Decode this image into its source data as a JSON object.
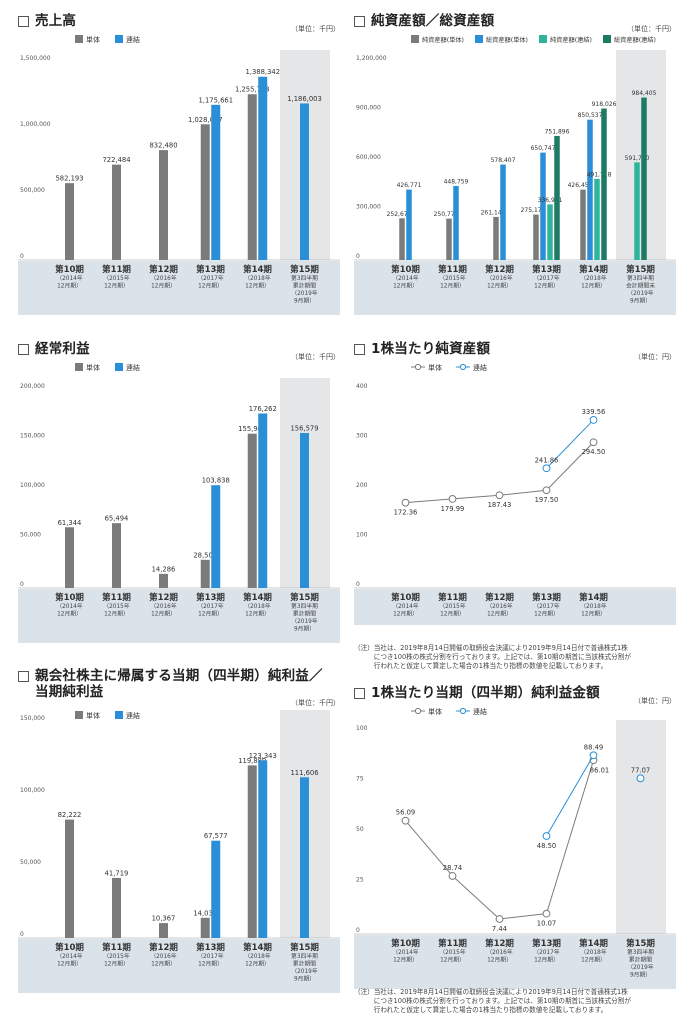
{
  "colors": {
    "single": "#7b7b7b",
    "consolidated": "#2a8fd6",
    "consol_net": "#2fb59a",
    "consol_total": "#1d7a64",
    "band": "#dbe3ea",
    "shade": "#e4e6e8"
  },
  "x_labels": [
    {
      "period": "第10期",
      "sub": [
        "（2014年",
        "12月期）"
      ]
    },
    {
      "period": "第11期",
      "sub": [
        "（2015年",
        "12月期）"
      ]
    },
    {
      "period": "第12期",
      "sub": [
        "（2016年",
        "12月期）"
      ]
    },
    {
      "period": "第13期",
      "sub": [
        "（2017年",
        "12月期）"
      ]
    },
    {
      "period": "第14期",
      "sub": [
        "（2018年",
        "12月期）"
      ]
    },
    {
      "period": "第15期",
      "sub": [
        "第3四半期",
        "累計期間",
        "（2019年",
        "9月期）"
      ]
    }
  ],
  "x_labels_assets_last": {
    "period": "第15期",
    "sub": [
      "第3四半期",
      "会計期間末",
      "（2019年",
      "9月期）"
    ]
  },
  "charts": {
    "sales": {
      "title": "売上高",
      "unit": "（単位：千円）",
      "chart_data": {
        "type": "bar",
        "title": "売上高",
        "categories": [
          "第10期",
          "第11期",
          "第12期",
          "第13期",
          "第14期",
          "第15期"
        ],
        "ylim": [
          0,
          1500000
        ],
        "yticks": [
          "0",
          "500,000",
          "1,000,000",
          "1,500,000"
        ],
        "ytick_values": [
          0,
          500000,
          1000000,
          1500000
        ],
        "series": [
          {
            "name": "単体",
            "key": "single",
            "values": [
              582193,
              722484,
              832480,
              1028037,
              1255773,
              null
            ],
            "labels": [
              "582,193",
              "722,484",
              "832,480",
              "1,028,037",
              "1,255,773",
              ""
            ]
          },
          {
            "name": "連結",
            "key": "consolidated",
            "values": [
              null,
              null,
              null,
              1175661,
              1388342,
              1186003
            ],
            "labels": [
              "",
              "",
              "",
              "1,175,661",
              "1,388,342",
              "1,186,003"
            ]
          }
        ]
      }
    },
    "assets": {
      "title": "純資産額／総資産額",
      "unit": "（単位：千円）",
      "chart_data": {
        "type": "bar",
        "title": "純資産額／総資産額",
        "categories": [
          "第10期",
          "第11期",
          "第12期",
          "第13期",
          "第14期",
          "第15期"
        ],
        "ylim": [
          0,
          1200000
        ],
        "yticks": [
          "0",
          "300,000",
          "600,000",
          "900,000",
          "1,200,000"
        ],
        "ytick_values": [
          0,
          300000,
          600000,
          900000,
          1200000
        ],
        "series": [
          {
            "name": "純資産額(単体)",
            "key": "single",
            "values": [
              252678,
              250777,
              261145,
              275176,
              426459,
              null
            ],
            "labels": [
              "252,678",
              "250,777",
              "261,145",
              "275,176",
              "426,459",
              ""
            ]
          },
          {
            "name": "総資産額(単体)",
            "key": "consolidated",
            "values": [
              426771,
              448759,
              578407,
              650747,
              850537,
              null
            ],
            "labels": [
              "426,771",
              "448,759",
              "578,407",
              "650,747",
              "850,537",
              ""
            ]
          },
          {
            "name": "純資産額(連結)",
            "key": "consol_net",
            "values": [
              null,
              null,
              null,
              336981,
              491718,
              591740
            ],
            "labels": [
              "",
              "",
              "",
              "336,981",
              "491,718",
              "591,740"
            ]
          },
          {
            "name": "総資産額(連結)",
            "key": "consol_total",
            "values": [
              null,
              null,
              null,
              751896,
              918026,
              984405
            ],
            "labels": [
              "",
              "",
              "",
              "751,896",
              "918,026",
              "984,405"
            ]
          }
        ]
      }
    },
    "ordinary": {
      "title": "経常利益",
      "unit": "（単位：千円）",
      "chart_data": {
        "type": "bar",
        "title": "経常利益",
        "categories": [
          "第10期",
          "第11期",
          "第12期",
          "第13期",
          "第14期",
          "第15期"
        ],
        "ylim": [
          0,
          200000
        ],
        "yticks": [
          "0",
          "50,000",
          "100,000",
          "150,000",
          "200,000"
        ],
        "ytick_values": [
          0,
          50000,
          100000,
          150000,
          200000
        ],
        "series": [
          {
            "name": "単体",
            "key": "single",
            "values": [
              61344,
              65494,
              14286,
              28501,
              155900,
              null
            ],
            "labels": [
              "61,344",
              "65,494",
              "14,286",
              "28,501",
              "155,900",
              ""
            ]
          },
          {
            "name": "連結",
            "key": "consolidated",
            "values": [
              null,
              null,
              null,
              103838,
              176262,
              156579
            ],
            "labels": [
              "",
              "",
              "",
              "103,838",
              "176,262",
              "156,579"
            ]
          }
        ]
      }
    },
    "bps": {
      "title": "1株当たり純資産額",
      "unit": "（単位：円）",
      "chart_data": {
        "type": "line",
        "title": "1株当たり純資産額",
        "categories": [
          "第10期",
          "第11期",
          "第12期",
          "第13期",
          "第14期"
        ],
        "ylim": [
          0,
          400
        ],
        "yticks": [
          "0",
          "100",
          "200",
          "300",
          "400"
        ],
        "ytick_values": [
          0,
          100,
          200,
          300,
          400
        ],
        "series": [
          {
            "name": "単体",
            "key": "single",
            "values": [
              172.36,
              179.99,
              187.43,
              197.5,
              294.5
            ],
            "labels": [
              "172.36",
              "179.99",
              "187.43",
              "197.50",
              "294.50"
            ]
          },
          {
            "name": "連結",
            "key": "consolidated",
            "values": [
              null,
              null,
              null,
              241.86,
              339.56
            ],
            "labels": [
              "",
              "",
              "",
              "241.86",
              "339.56"
            ]
          }
        ]
      },
      "note": [
        "（注）当社は、2019年8月14日開催の取締役会決議により2019年9月14日付で普通株式1株",
        "　　　につき100株の株式分割を行っております。上記では、第10期の期首に当該株式分割が",
        "　　　行われたと仮定して算定した場合の1株当たり指標の数値を記載しております。"
      ]
    },
    "net_income": {
      "title": "親会社株主に帰属する当期（四半期）純利益／",
      "title2": "当期純利益",
      "unit": "（単位：千円）",
      "chart_data": {
        "type": "bar",
        "title": "親会社株主に帰属する当期（四半期）純利益／当期純利益",
        "categories": [
          "第10期",
          "第11期",
          "第12期",
          "第13期",
          "第14期",
          "第15期"
        ],
        "ylim": [
          0,
          150000
        ],
        "yticks": [
          "0",
          "50,000",
          "100,000",
          "150,000"
        ],
        "ytick_values": [
          0,
          50000,
          100000,
          150000
        ],
        "series": [
          {
            "name": "単体",
            "key": "single",
            "values": [
              82222,
              41719,
              10367,
              14031,
              119889,
              null
            ],
            "labels": [
              "82,222",
              "41,719",
              "10,367",
              "14,031",
              "119,889",
              ""
            ]
          },
          {
            "name": "連結",
            "key": "consolidated",
            "values": [
              null,
              null,
              null,
              67577,
              123343,
              111606
            ],
            "labels": [
              "",
              "",
              "",
              "67,577",
              "123,343",
              "111,606"
            ]
          }
        ]
      }
    },
    "eps": {
      "title": "1株当たり当期（四半期）純利益金額",
      "unit": "（単位：円）",
      "chart_data": {
        "type": "line",
        "title": "1株当たり当期（四半期）純利益金額",
        "categories": [
          "第10期",
          "第11期",
          "第12期",
          "第13期",
          "第14期",
          "第15期"
        ],
        "ylim": [
          0,
          100
        ],
        "yticks": [
          "0",
          "25",
          "50",
          "75",
          "100"
        ],
        "ytick_values": [
          0,
          25,
          50,
          75,
          100
        ],
        "series": [
          {
            "name": "単体",
            "key": "single",
            "values": [
              56.09,
              28.74,
              7.44,
              10.07,
              86.01,
              null
            ],
            "labels": [
              "56.09",
              "28.74",
              "7.44",
              "10.07",
              "86.01",
              ""
            ]
          },
          {
            "name": "連結",
            "key": "consolidated",
            "values": [
              null,
              null,
              null,
              48.5,
              88.49,
              77.07
            ],
            "labels": [
              "",
              "",
              "",
              "48.50",
              "88.49",
              "77.07"
            ]
          }
        ]
      },
      "note": [
        "（注）当社は、2019年8月14日開催の取締役会決議により2019年9月14日付で普通株式1株",
        "　　　につき100株の株式分割を行っております。上記では、第10期の期首に当該株式分割が",
        "　　　行われたと仮定して算定した場合の1株当たり指標の数値を記載しております。"
      ]
    }
  }
}
